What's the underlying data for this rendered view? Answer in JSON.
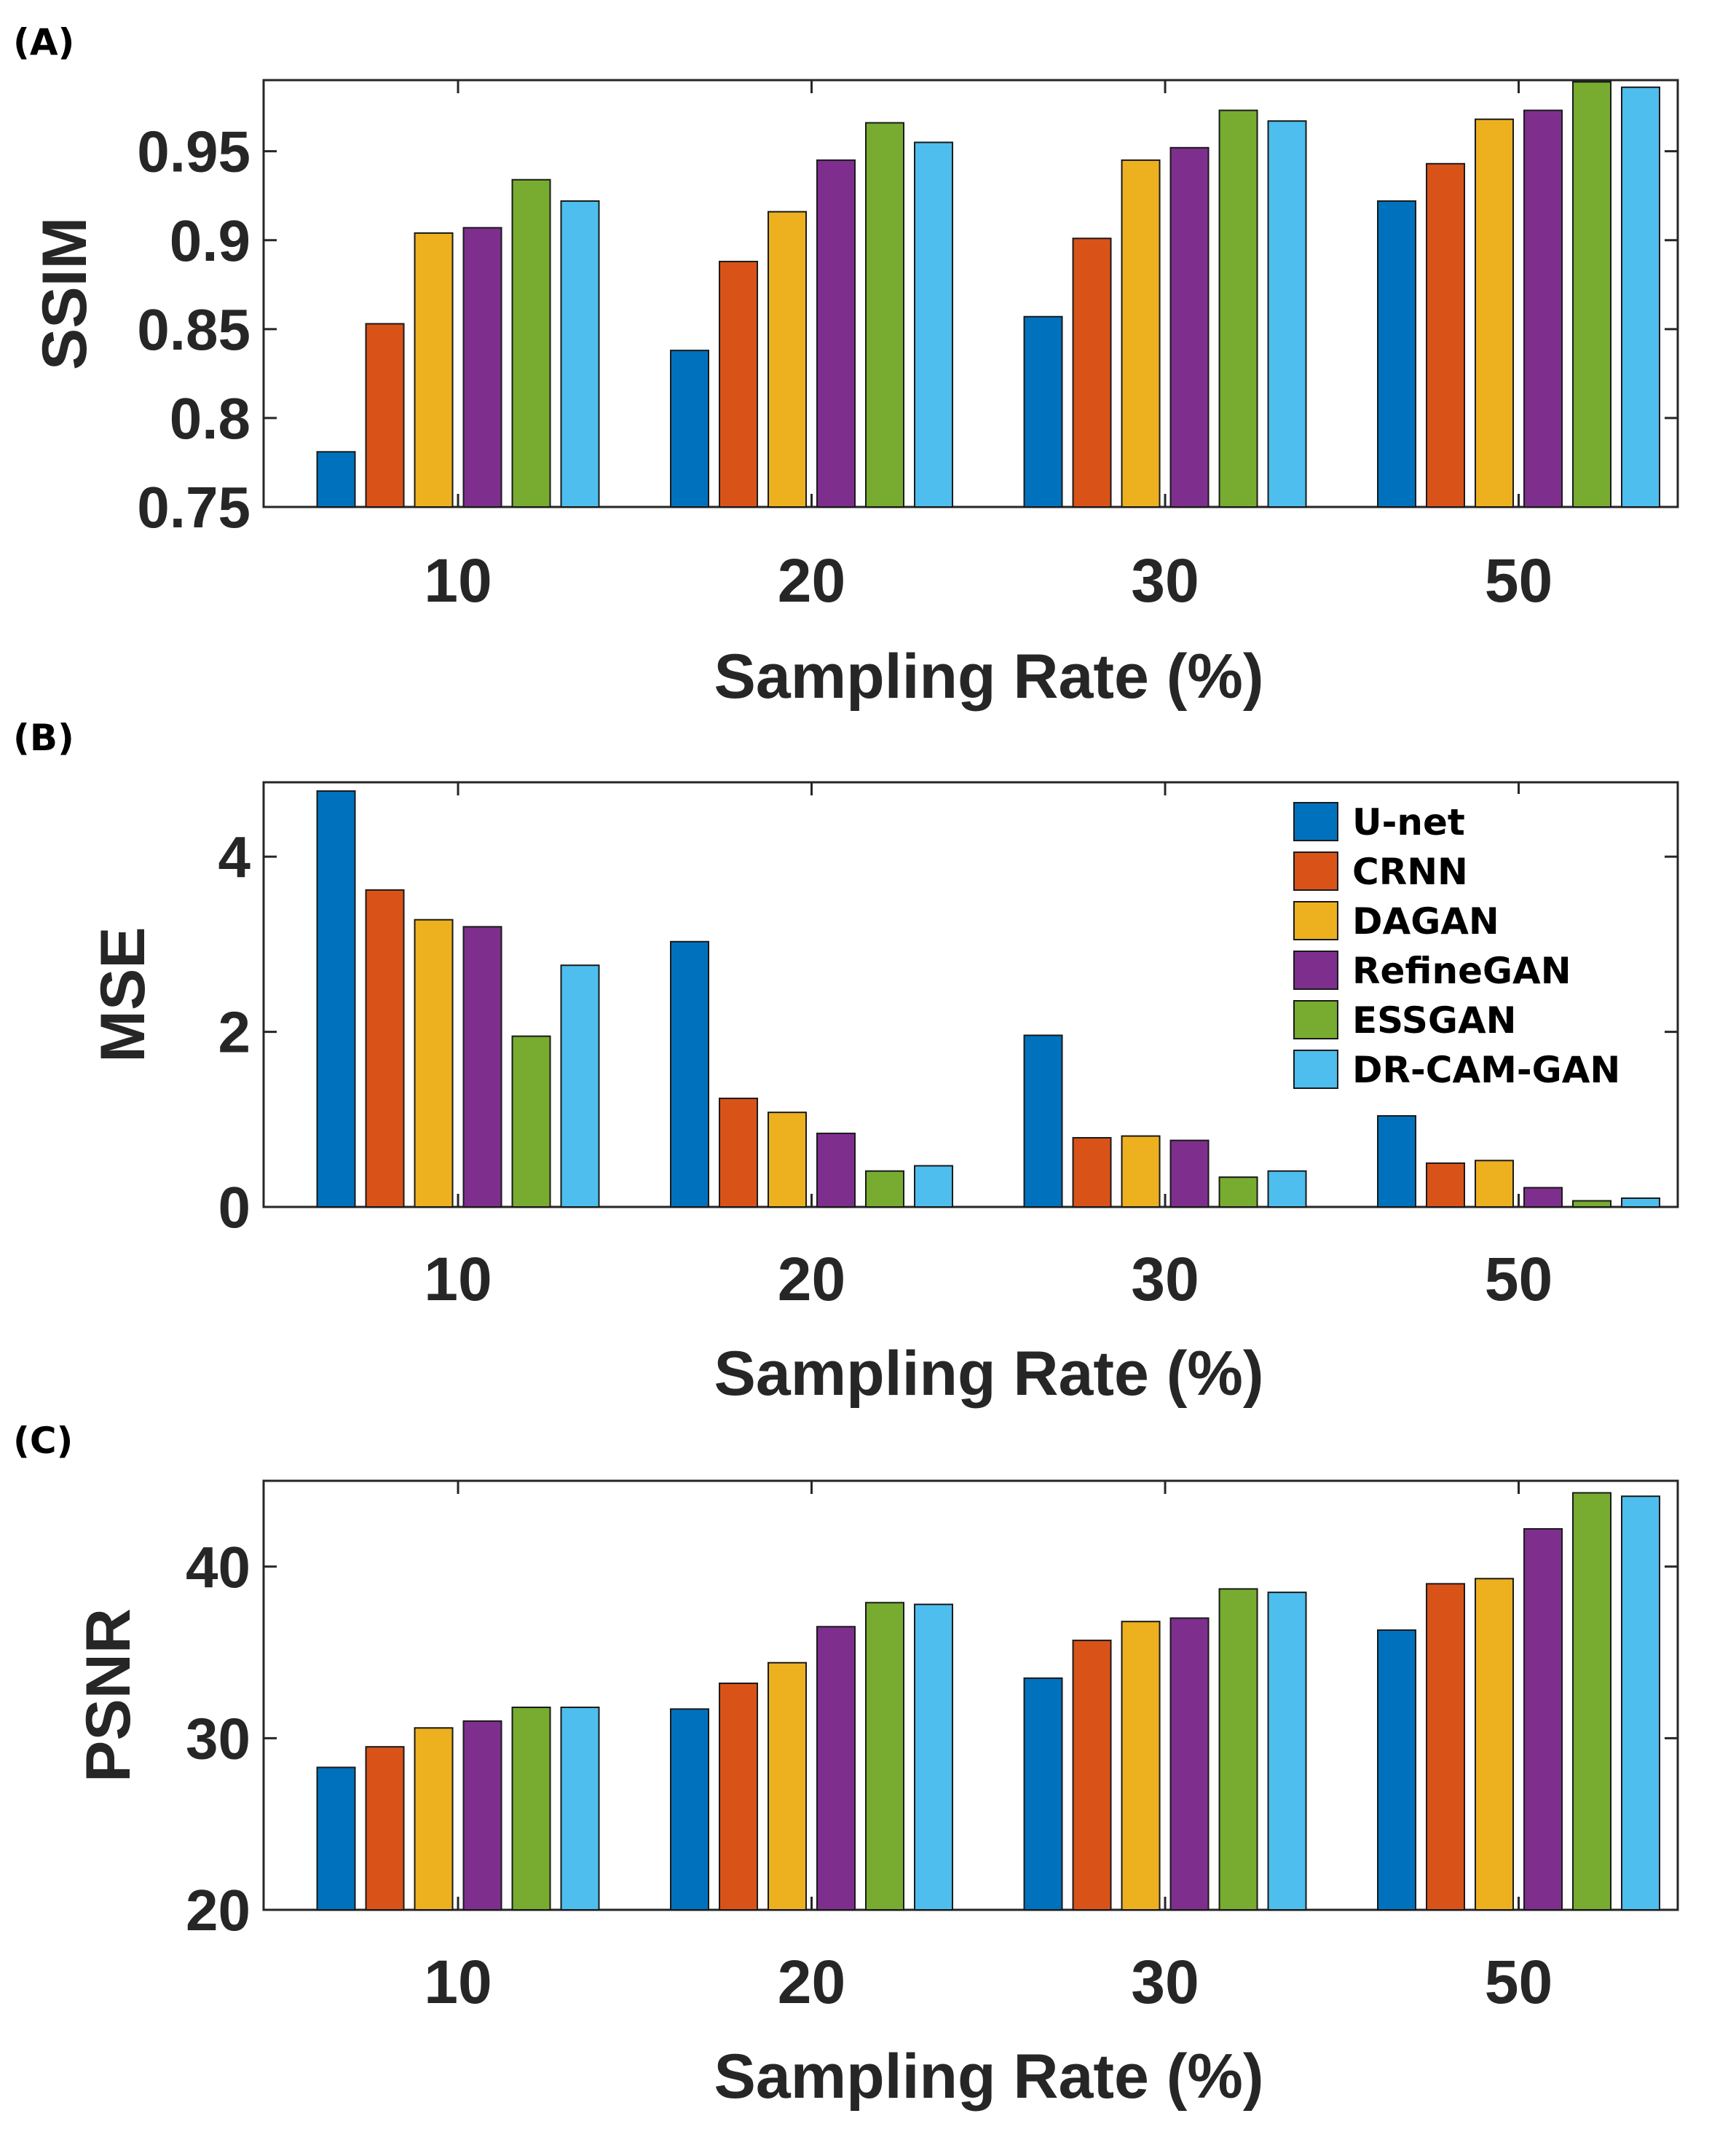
{
  "chart_data": [
    {
      "panel_label": "(A)",
      "type": "bar",
      "title": "",
      "xlabel": "Sampling Rate (%)",
      "ylabel": "SSIM",
      "ylim": [
        0.75,
        0.99
      ],
      "yticks": [
        0.75,
        0.8,
        0.85,
        0.9,
        0.95
      ],
      "ytick_labels": [
        "0.75",
        "0.8",
        "0.85",
        "0.9",
        "0.95"
      ],
      "categories": [
        "10",
        "20",
        "30",
        "50"
      ],
      "series": [
        {
          "name": "U-net",
          "color": "#0072BD",
          "values": [
            0.781,
            0.838,
            0.857,
            0.922
          ]
        },
        {
          "name": "CRNN",
          "color": "#D95319",
          "values": [
            0.853,
            0.888,
            0.901,
            0.943
          ]
        },
        {
          "name": "DAGAN",
          "color": "#EDB120",
          "values": [
            0.904,
            0.916,
            0.945,
            0.968
          ]
        },
        {
          "name": "RefineGAN",
          "color": "#7E2F8E",
          "values": [
            0.907,
            0.945,
            0.952,
            0.973
          ]
        },
        {
          "name": "ESSGAN",
          "color": "#77AC30",
          "values": [
            0.934,
            0.966,
            0.973,
            0.989
          ]
        },
        {
          "name": "DR-CAM-GAN",
          "color": "#4DBEEE",
          "values": [
            0.922,
            0.955,
            0.967,
            0.986
          ]
        }
      ]
    },
    {
      "panel_label": "(B)",
      "type": "bar",
      "title": "",
      "xlabel": "Sampling Rate (%)",
      "ylabel": "MSE",
      "ylim": [
        0,
        4.85
      ],
      "yticks": [
        0,
        2,
        4
      ],
      "ytick_labels": [
        "0",
        "2",
        "4"
      ],
      "categories": [
        "10",
        "20",
        "30",
        "50"
      ],
      "legend_position": "top-right",
      "series": [
        {
          "name": "U-net",
          "color": "#0072BD",
          "values": [
            4.75,
            3.03,
            1.96,
            1.04
          ]
        },
        {
          "name": "CRNN",
          "color": "#D95319",
          "values": [
            3.62,
            1.24,
            0.79,
            0.5
          ]
        },
        {
          "name": "DAGAN",
          "color": "#EDB120",
          "values": [
            3.28,
            1.08,
            0.81,
            0.53
          ]
        },
        {
          "name": "RefineGAN",
          "color": "#7E2F8E",
          "values": [
            3.2,
            0.84,
            0.76,
            0.22
          ]
        },
        {
          "name": "ESSGAN",
          "color": "#77AC30",
          "values": [
            1.95,
            0.41,
            0.34,
            0.07
          ]
        },
        {
          "name": "DR-CAM-GAN",
          "color": "#4DBEEE",
          "values": [
            2.76,
            0.47,
            0.41,
            0.1
          ]
        }
      ]
    },
    {
      "panel_label": "(C)",
      "type": "bar",
      "title": "",
      "xlabel": "Sampling Rate (%)",
      "ylabel": "PSNR",
      "ylim": [
        20,
        45
      ],
      "yticks": [
        20,
        30,
        40
      ],
      "ytick_labels": [
        "20",
        "30",
        "40"
      ],
      "categories": [
        "10",
        "20",
        "30",
        "50"
      ],
      "series": [
        {
          "name": "U-net",
          "color": "#0072BD",
          "values": [
            28.3,
            31.7,
            33.5,
            36.3
          ]
        },
        {
          "name": "CRNN",
          "color": "#D95319",
          "values": [
            29.5,
            33.2,
            35.7,
            39.0
          ]
        },
        {
          "name": "DAGAN",
          "color": "#EDB120",
          "values": [
            30.6,
            34.4,
            36.8,
            39.3
          ]
        },
        {
          "name": "RefineGAN",
          "color": "#7E2F8E",
          "values": [
            31.0,
            36.5,
            37.0,
            42.2
          ]
        },
        {
          "name": "ESSGAN",
          "color": "#77AC30",
          "values": [
            31.8,
            37.9,
            38.7,
            44.3
          ]
        },
        {
          "name": "DR-CAM-GAN",
          "color": "#4DBEEE",
          "values": [
            31.8,
            37.8,
            38.5,
            44.1
          ]
        }
      ]
    }
  ]
}
